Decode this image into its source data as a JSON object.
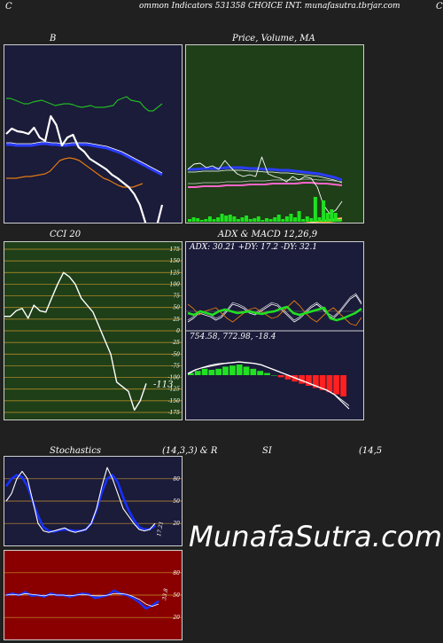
{
  "header": {
    "left_char": "C",
    "title": "ommon  Indicators 531358  CHOICE INT. munafasutra.tbrjar.com",
    "right_char": "C"
  },
  "colors": {
    "bg": "#202020",
    "navy": "#1b1b3a",
    "green": "#1e3f18",
    "red": "#8a0000",
    "orange": "#e07a10"
  },
  "watermark": "MunafaSutra.com",
  "chart_data": [
    {
      "id": "bollinger",
      "type": "line",
      "title": "B",
      "series": [
        {
          "values": [
            60,
            60,
            62,
            64,
            66,
            66,
            64,
            63,
            62,
            64,
            66,
            68,
            67,
            66,
            66,
            67,
            69,
            70,
            69,
            68,
            70,
            70,
            70,
            69,
            68,
            62,
            60,
            58,
            62,
            63,
            64,
            70,
            74,
            74,
            70,
            66
          ]
        },
        {
          "values": [
            112,
            112,
            113,
            113,
            113,
            113,
            112,
            111,
            111,
            112,
            112,
            113,
            113,
            112,
            112,
            112,
            112,
            113,
            114,
            115,
            116,
            118,
            120,
            122,
            125,
            128,
            131,
            134,
            137,
            140,
            143,
            146
          ]
        },
        {
          "values": [
            150,
            150,
            150,
            149,
            148,
            148,
            147,
            146,
            145,
            142,
            136,
            130,
            128,
            127,
            128,
            130,
            134,
            138,
            142,
            146,
            150,
            152,
            155,
            158,
            160,
            160,
            160,
            158,
            156
          ]
        },
        {
          "values": [
            100,
            94,
            97,
            98,
            100,
            93,
            104,
            108,
            80,
            90,
            113,
            104,
            101,
            115,
            120,
            128,
            132,
            136,
            140,
            146,
            150,
            155,
            160,
            168,
            180,
            200,
            225,
            205,
            180
          ]
        }
      ]
    },
    {
      "id": "price_ma",
      "type": "line",
      "title": "Price,  Volume,  MA",
      "series": [
        {
          "values": [
            140,
            134,
            133,
            138,
            136,
            140,
            130,
            138,
            145,
            148,
            146,
            148,
            126,
            145,
            148,
            150,
            154,
            148,
            152,
            148,
            150,
            160,
            180,
            190,
            186,
            176
          ]
        },
        {
          "values": [
            143,
            143,
            142,
            142,
            142,
            141,
            141,
            141,
            142,
            142,
            143,
            143,
            144,
            144,
            145,
            146,
            147,
            148,
            150,
            152,
            155
          ]
        },
        {
          "values": [
            160,
            160,
            159,
            159,
            159,
            158,
            158,
            158,
            157,
            157,
            157,
            156,
            156,
            156,
            156,
            155,
            155,
            156,
            156,
            157,
            158
          ]
        },
        {
          "values": [
            220,
            218,
            216,
            214,
            212,
            210,
            208,
            206,
            204,
            202,
            200,
            198,
            196
          ]
        },
        {
          "values": [
            3,
            5,
            4,
            2,
            3,
            6,
            3,
            5,
            9,
            7,
            8,
            6,
            3,
            5,
            7,
            3,
            4,
            6,
            2,
            4,
            3,
            5,
            8,
            3,
            6,
            9,
            5,
            12,
            3,
            6,
            4,
            28,
            5,
            24,
            10,
            14,
            10,
            3
          ]
        }
      ]
    },
    {
      "id": "cci",
      "type": "line",
      "title": "CCI 20",
      "ylim": [
        -175,
        175
      ],
      "yticks": [
        175,
        150,
        125,
        100,
        75,
        50,
        25,
        0,
        -25,
        -50,
        -75,
        -100,
        -125,
        -150,
        -175
      ],
      "value_label": "-113",
      "series": [
        {
          "values": [
            31,
            31,
            43,
            48,
            27,
            55,
            43,
            40,
            70,
            100,
            125,
            116,
            100,
            70,
            55,
            40,
            10,
            -20,
            -50,
            -110,
            -120,
            -130,
            -170,
            -150,
            -113
          ]
        }
      ]
    },
    {
      "id": "adx",
      "type": "line",
      "title": "ADX  & MACD 12,26,9",
      "readout": "ADX: 30.21  +DY: 17.2  -DY: 32.1",
      "series": [
        {
          "values": [
            50,
            48,
            52,
            50,
            48,
            52,
            54,
            52,
            50,
            51,
            52,
            50,
            49,
            51,
            52,
            55,
            57,
            50,
            48,
            50,
            52,
            54,
            56,
            44,
            42,
            44,
            47,
            50,
            55
          ]
        },
        {
          "values": [
            40,
            44,
            50,
            48,
            46,
            42,
            45,
            52,
            60,
            58,
            55,
            50,
            48,
            52,
            56,
            60,
            58,
            52,
            46,
            40,
            44,
            50,
            56,
            60,
            55,
            48,
            44,
            50,
            58,
            66,
            70,
            60
          ]
        },
        {
          "values": [
            60,
            55,
            48,
            52,
            54,
            56,
            50,
            44,
            40,
            45,
            50,
            54,
            56,
            52,
            48,
            44,
            46,
            52,
            58,
            64,
            58,
            50,
            44,
            40,
            46,
            52,
            56,
            50,
            44,
            38,
            36,
            45
          ]
        }
      ]
    },
    {
      "id": "macd",
      "type": "line",
      "title": "",
      "readout": "754.58,  772.98,  -18.4",
      "series": [
        {
          "values": [
            0,
            5,
            8,
            10,
            12,
            14,
            15,
            16,
            15,
            14,
            12,
            8,
            4,
            0,
            -4,
            -8,
            -12,
            -16,
            -20,
            -24,
            -30,
            -40,
            -50
          ]
        },
        {
          "values": [
            -4,
            2,
            6,
            9,
            11,
            12,
            13,
            14,
            13,
            12,
            10,
            6,
            2,
            -2,
            -6,
            -10,
            -14,
            -18,
            -22,
            -26,
            -32,
            -40,
            -48
          ]
        },
        {
          "values": [
            2,
            4,
            6,
            5,
            6,
            8,
            9,
            10,
            8,
            6,
            4,
            2,
            0,
            -2,
            -4,
            -6,
            -8,
            -10,
            -12,
            -14,
            -16,
            -18,
            -20
          ]
        }
      ]
    },
    {
      "id": "stochastics",
      "type": "line",
      "title": "Stochastics",
      "subtitle": "(14,3,3) & R",
      "ylim": [
        0,
        100
      ],
      "yticks": [
        80,
        50,
        20
      ],
      "value_label": "17.21",
      "series": [
        {
          "values": [
            50,
            60,
            80,
            90,
            80,
            50,
            20,
            10,
            8,
            10,
            12,
            14,
            10,
            8,
            10,
            12,
            20,
            40,
            70,
            95,
            80,
            60,
            40,
            30,
            20,
            12,
            10,
            12,
            20
          ]
        },
        {
          "values": [
            70,
            80,
            85,
            82,
            70,
            50,
            30,
            15,
            10,
            9,
            11,
            12,
            11,
            10,
            10,
            12,
            20,
            38,
            62,
            80,
            85,
            75,
            55,
            38,
            25,
            15,
            12,
            12,
            17
          ]
        }
      ]
    },
    {
      "id": "rsi",
      "type": "line",
      "title": "SI",
      "subtitle": "(14,5",
      "ylim": [
        0,
        100
      ],
      "yticks": [
        80,
        50,
        20
      ],
      "value_label": "33.8",
      "series": [
        {
          "values": [
            50,
            52,
            50,
            54,
            49,
            50,
            48,
            52,
            50,
            50,
            48,
            50,
            52,
            51,
            46,
            48,
            50,
            56,
            52,
            50,
            46,
            40,
            32,
            36,
            42
          ]
        },
        {
          "values": [
            50,
            51,
            50,
            52,
            51,
            50,
            49,
            51,
            50,
            50,
            49,
            50,
            51,
            50,
            49,
            49,
            50,
            52,
            52,
            51,
            48,
            44,
            38,
            35,
            38
          ]
        }
      ]
    }
  ]
}
